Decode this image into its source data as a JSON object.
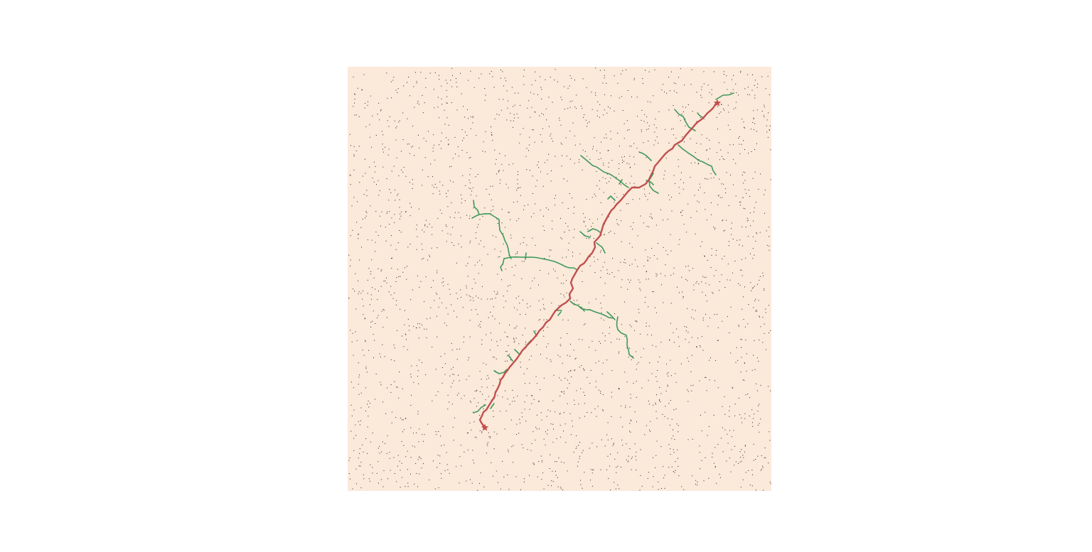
{
  "colors": {
    "page_background": "#ffffff",
    "field_background": "#fbe9da",
    "obstacle_dots": "#222222",
    "explored_tree": "#3f9a5a",
    "solution_path": "#c0504d",
    "endpoint_marker": "#c0504d"
  },
  "markers": [
    {
      "name": "start",
      "icon": "star-icon"
    },
    {
      "name": "goal",
      "icon": "star-icon"
    }
  ],
  "tree_branch_count": 31,
  "obstacle_dot_count": 2600
}
